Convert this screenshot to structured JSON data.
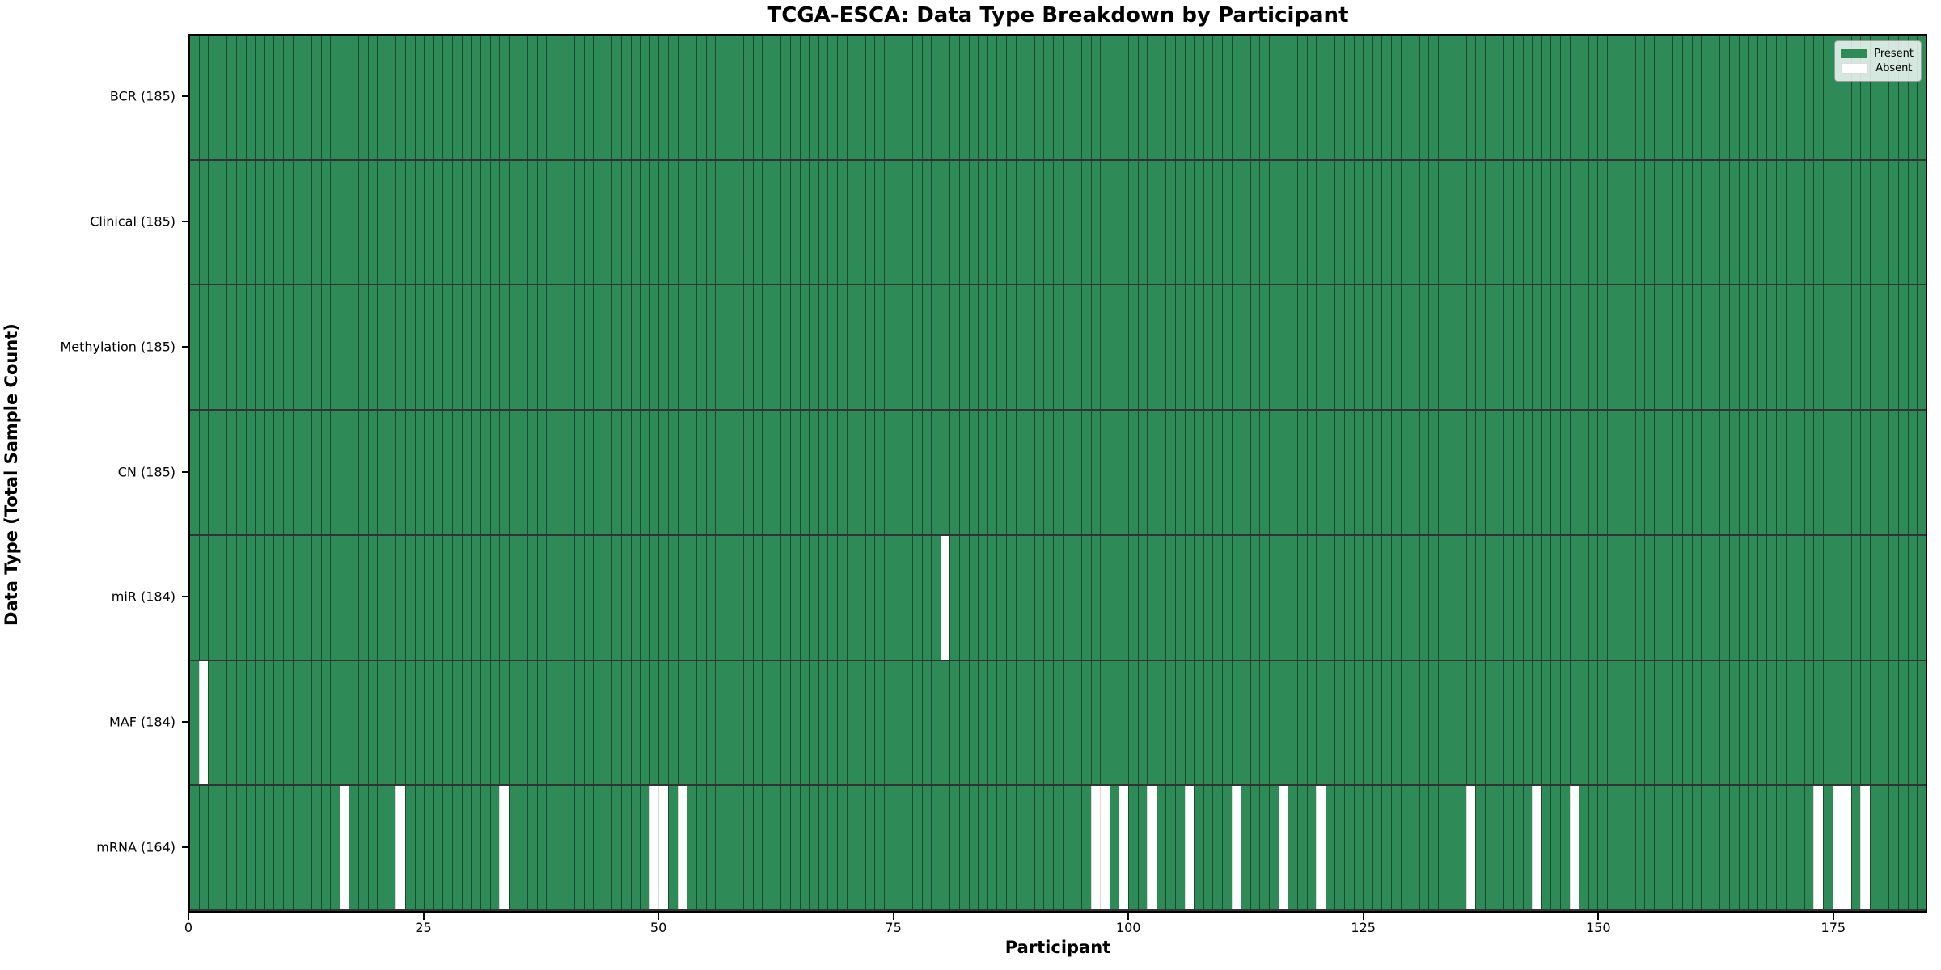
{
  "figure": {
    "title": "TCGA-ESCA: Data Type Breakdown by Participant",
    "xlabel": "Participant",
    "ylabel": "Data Type (Total Sample Count)"
  },
  "chart_data": {
    "type": "heatmap",
    "title": "TCGA-ESCA: Data Type Breakdown by Participant",
    "xlabel": "Participant",
    "ylabel": "Data Type (Total Sample Count)",
    "x_range": [
      0,
      185
    ],
    "n_participants": 185,
    "x_ticks": [
      0,
      25,
      50,
      75,
      100,
      125,
      150,
      175
    ],
    "grid": false,
    "rows": [
      {
        "label": "BCR (185)",
        "name": "BCR",
        "present_count": 185,
        "missing_participants": []
      },
      {
        "label": "Clinical (185)",
        "name": "Clinical",
        "present_count": 185,
        "missing_participants": []
      },
      {
        "label": "Methylation (185)",
        "name": "Methylation",
        "present_count": 185,
        "missing_participants": []
      },
      {
        "label": "CN (185)",
        "name": "CN",
        "present_count": 185,
        "missing_participants": []
      },
      {
        "label": "miR (184)",
        "name": "miR",
        "present_count": 184,
        "missing_participants": [
          80
        ]
      },
      {
        "label": "MAF (184)",
        "name": "MAF",
        "present_count": 184,
        "missing_participants": [
          1
        ]
      },
      {
        "label": "mRNA (164)",
        "name": "mRNA",
        "present_count": 164,
        "missing_participants": [
          16,
          22,
          33,
          49,
          50,
          52,
          96,
          97,
          99,
          102,
          106,
          111,
          116,
          120,
          136,
          143,
          147,
          173,
          175,
          176,
          178
        ]
      }
    ],
    "legend": {
      "position": "upper right",
      "entries": [
        {
          "label": "Present",
          "color": "#2e8b57"
        },
        {
          "label": "Absent",
          "color": "#ffffff"
        }
      ]
    },
    "colors": {
      "present": "#2e8b57",
      "absent": "#ffffff",
      "bar_edge": "rgba(10,40,25,0.65)",
      "row_separator": "rgba(0,0,0,0.8)",
      "axes_border": "#000000"
    }
  }
}
